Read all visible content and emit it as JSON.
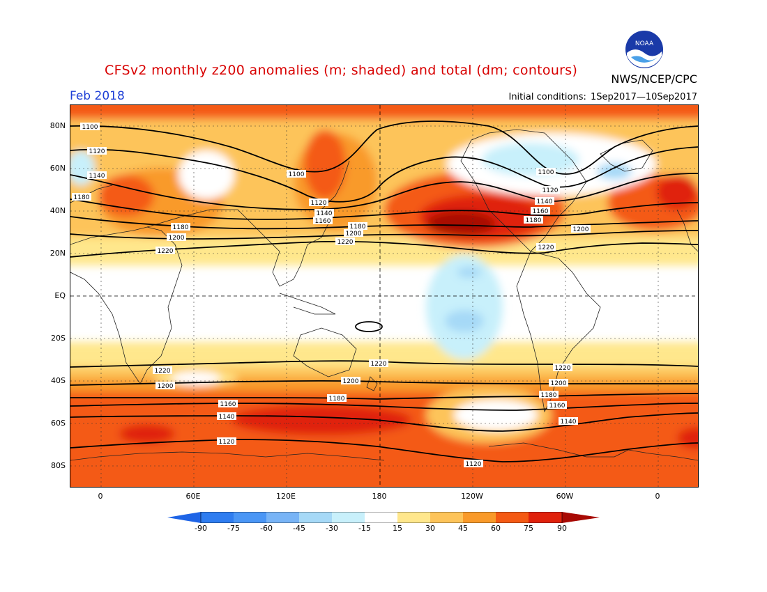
{
  "header": {
    "title": "CFSv2 monthly z200 anomalies (m; shaded) and total (dm; contours)",
    "agency": "NWS/NCEP/CPC",
    "date": "Feb 2018",
    "init_label": "Initial conditions:",
    "init_range": "1Sep2017—10Sep2017",
    "logo_text": "NOAA"
  },
  "axes": {
    "lat_labels": [
      "80N",
      "60N",
      "40N",
      "20N",
      "EQ",
      "20S",
      "40S",
      "60S",
      "80S"
    ],
    "lon_labels": [
      "0",
      "60E",
      "120E",
      "180",
      "120W",
      "60W",
      "0"
    ]
  },
  "colorbar": {
    "labels": [
      "-90",
      "-75",
      "-60",
      "-45",
      "-30",
      "-15",
      "15",
      "30",
      "45",
      "60",
      "75",
      "90"
    ],
    "colors": [
      "#1e64e6",
      "#2f7df0",
      "#4a96f5",
      "#78b4f6",
      "#a6d9f7",
      "#c8f0fb",
      "#ffffff",
      "#ffe78c",
      "#fdc45a",
      "#f99a2a",
      "#f45a14",
      "#e0220c",
      "#a80a04"
    ]
  },
  "contour_labels": [
    "1100",
    "1120",
    "1140",
    "1160",
    "1180",
    "1200",
    "1220"
  ],
  "colors": {
    "title": "#d80000",
    "date": "#1e3fd6"
  }
}
